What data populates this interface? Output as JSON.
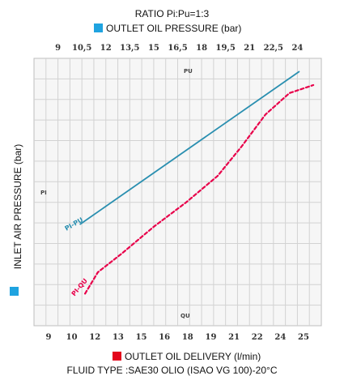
{
  "title": "RATIO Pi:Pu=1:3",
  "top_legend": {
    "label": "OUTLET OIL PRESSURE (bar)",
    "color": "#1fa3e0"
  },
  "left_legend": {
    "label": "INLET AIR PRESSURE (bar)",
    "color": "#1fa3e0"
  },
  "bottom_legend": {
    "label": "OUTLET OIL DELIVERY (l/min)",
    "color": "#e3051b"
  },
  "footer": "FLUID TYPE :SAE30 OLIO (ISAO VG 100)-20°C",
  "inner_labels": {
    "top": "PU",
    "left": "PI",
    "bottom": "QU"
  },
  "chart_data": {
    "type": "line",
    "top_axis": {
      "label": "OUTLET OIL PRESSURE (bar)",
      "ticks": [
        "9",
        "10,5",
        "12",
        "13,5",
        "15",
        "16,5",
        "18",
        "19,5",
        "21",
        "22,5",
        "24"
      ],
      "range": [
        7.5,
        25.5
      ]
    },
    "bottom_axis": {
      "label": "OUTLET OIL DELIVERY (l/min)",
      "ticks": [
        "9",
        "10",
        "12",
        "13",
        "15",
        "16",
        "18",
        "19",
        "21",
        "22",
        "24",
        "25"
      ]
    },
    "left_axis": {
      "label": "INLET AIR PRESSURE (bar)",
      "ticks": []
    },
    "grid": true,
    "series": [
      {
        "name": "PI-PU",
        "color": "#2a8fb0",
        "style": "solid",
        "points": [
          [
            10.4,
            0.38
          ],
          [
            24.1,
            0.95
          ]
        ]
      },
      {
        "name": "PI-QU",
        "color": "#e8004a",
        "style": "dashed",
        "points": [
          [
            10.7,
            0.12
          ],
          [
            11.5,
            0.2
          ],
          [
            13.0,
            0.27
          ],
          [
            15.0,
            0.37
          ],
          [
            17.0,
            0.46
          ],
          [
            19.0,
            0.56
          ],
          [
            20.5,
            0.67
          ],
          [
            22.0,
            0.79
          ],
          [
            23.5,
            0.87
          ],
          [
            25.0,
            0.9
          ]
        ]
      }
    ]
  }
}
